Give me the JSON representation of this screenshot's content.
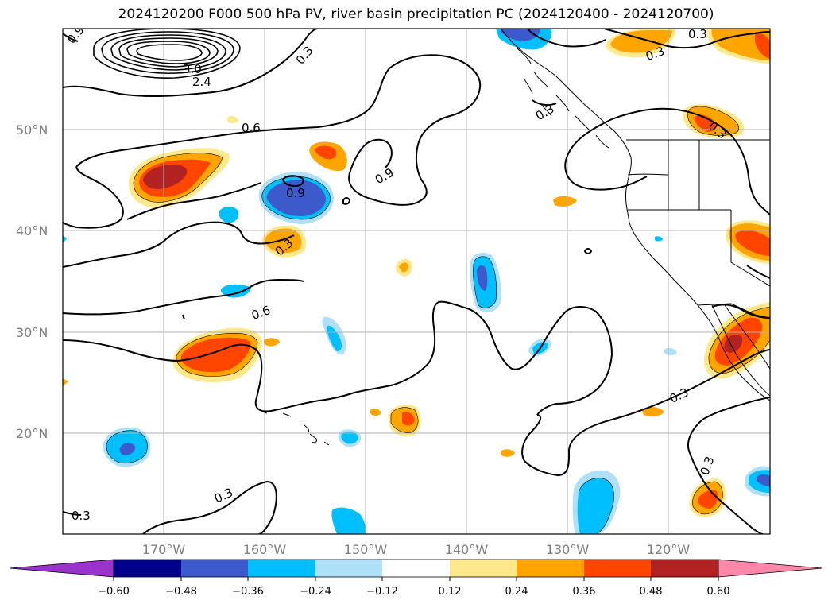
{
  "title": "2024120200 F000 500 hPa PV, river basin precipitation PC (2024120400 - 2024120700)",
  "colors": {
    "grid": "#b0b0b0",
    "frame": "#000000",
    "coast": "#000000",
    "contour": "#000000"
  },
  "map": {
    "lat_labels": [
      "50°N",
      "40°N",
      "30°N",
      "20°N"
    ],
    "lon_labels": [
      "170°W",
      "160°W",
      "150°W",
      "140°W",
      "130°W",
      "120°W"
    ],
    "contour_labels": [
      "0.9",
      "3.0",
      "2.4",
      "0.6",
      "0.9",
      "0.9",
      "0.3",
      "0.3",
      "0.3",
      "0.6",
      "0.3",
      "0.3",
      "0.3",
      "0.3",
      "0.3",
      "0.3",
      "0.3"
    ],
    "pc_blobs": [
      {
        "level": 0.48,
        "lon": -167,
        "lat": 45.5
      },
      {
        "level": 0.36,
        "lon": -163.5,
        "lat": 27.5
      },
      {
        "level": -0.48,
        "lon": -156,
        "lat": 43
      },
      {
        "level": -0.36,
        "lon": -139,
        "lat": 35
      },
      {
        "level": -0.36,
        "lon": -168,
        "lat": 18.5
      },
      {
        "level": 0.36,
        "lon": -116,
        "lat": 28
      },
      {
        "level": 0.36,
        "lon": -114,
        "lat": 39
      },
      {
        "level": 0.36,
        "lon": -117.5,
        "lat": 50.5
      },
      {
        "level": 0.36,
        "lon": -116.5,
        "lat": 13.5
      },
      {
        "level": -0.36,
        "lon": -131,
        "lat": 13.5
      },
      {
        "level": 0.24,
        "lon": -157,
        "lat": 39
      }
    ]
  },
  "colorbar": {
    "levels": [
      -0.6,
      -0.48,
      -0.36,
      -0.24,
      -0.12,
      0.12,
      0.24,
      0.36,
      0.48,
      0.6
    ],
    "tick_labels": [
      "−0.60",
      "−0.48",
      "−0.36",
      "−0.24",
      "−0.12",
      "0.12",
      "0.24",
      "0.36",
      "0.48",
      "0.60"
    ],
    "colors": [
      "#9933cc",
      "#00008b",
      "#3c5acc",
      "#00bfff",
      "#aee0f7",
      "#ffffff",
      "#fde98c",
      "#ffa500",
      "#ff4500",
      "#b22222",
      "#ff88aa"
    ]
  }
}
